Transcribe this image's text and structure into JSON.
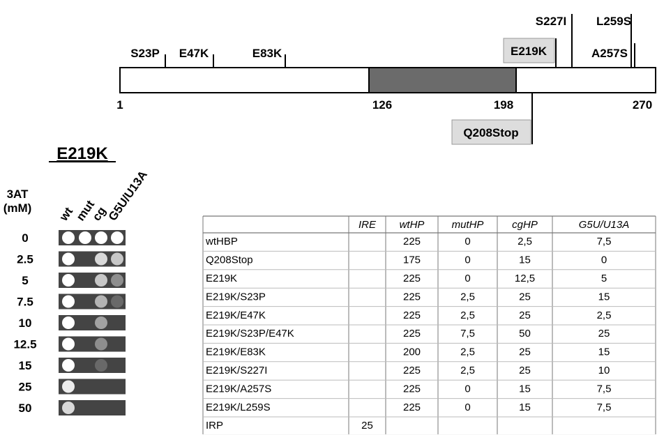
{
  "protein": {
    "start": "1",
    "domain_start": "126",
    "domain_end": "198",
    "end": "270",
    "mutations_above": [
      "S23P",
      "E47K",
      "E83K",
      "E219K",
      "S227I",
      "L259S",
      "A257S"
    ],
    "mutation_below": "Q208Stop"
  },
  "assay": {
    "title": "E219K",
    "axis_label": [
      "3AT",
      "(mM)"
    ],
    "columns": [
      "wt",
      "mut",
      "cg",
      "G5U/U13A"
    ],
    "concentrations": [
      "0",
      "2.5",
      "5",
      "7.5",
      "10",
      "12.5",
      "15",
      "25",
      "50"
    ]
  },
  "table": {
    "columns": [
      "IRE",
      "wtHP",
      "mutHP",
      "cgHP",
      "G5U/U13A"
    ],
    "rows": [
      {
        "name": "wtHBP",
        "cells": [
          null,
          "225",
          "0",
          "2,5",
          "7,5"
        ]
      },
      {
        "name": "Q208Stop",
        "cells": [
          null,
          "175",
          "0",
          "15",
          "0"
        ]
      },
      {
        "name": "E219K",
        "cells": [
          null,
          "225",
          "0",
          "12,5",
          "5"
        ]
      },
      {
        "name": "E219K/S23P",
        "cells": [
          null,
          "225",
          "2,5",
          "25",
          "15"
        ]
      },
      {
        "name": "E219K/E47K",
        "cells": [
          null,
          "225",
          "2,5",
          "25",
          "2,5"
        ]
      },
      {
        "name": "E219K/S23P/E47K",
        "cells": [
          null,
          "225",
          "7,5",
          "50",
          "25"
        ]
      },
      {
        "name": "E219K/E83K",
        "cells": [
          null,
          "200",
          "2,5",
          "25",
          "15"
        ]
      },
      {
        "name": "E219K/S227I",
        "cells": [
          null,
          "225",
          "2,5",
          "25",
          "10"
        ]
      },
      {
        "name": "E219K/A257S",
        "cells": [
          null,
          "225",
          "0",
          "15",
          "7,5"
        ]
      },
      {
        "name": "E219K/L259S",
        "cells": [
          null,
          "225",
          "0",
          "15",
          "7,5"
        ]
      },
      {
        "name": "IRP",
        "cells": [
          "25",
          null,
          null,
          null,
          null
        ]
      }
    ]
  }
}
